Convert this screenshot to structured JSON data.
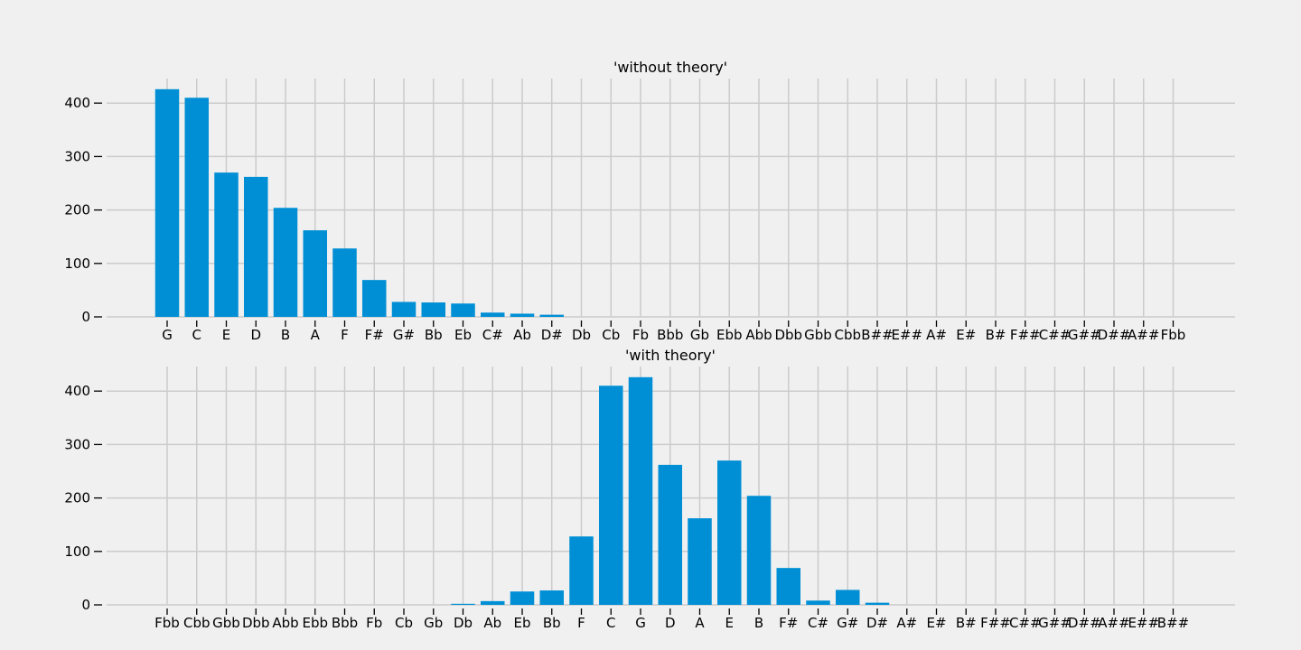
{
  "chart_data": [
    {
      "type": "bar",
      "title": "'without theory'",
      "xlabel": "",
      "ylabel": "",
      "ylim": [
        0,
        445
      ],
      "yticks": [
        0,
        100,
        200,
        300,
        400
      ],
      "grid": true,
      "color": "#008fd5",
      "categories": [
        "G",
        "C",
        "E",
        "D",
        "B",
        "A",
        "F",
        "F#",
        "G#",
        "Bb",
        "Eb",
        "C#",
        "Ab",
        "D#",
        "Db",
        "Cb",
        "Fb",
        "Bbb",
        "Gb",
        "Ebb",
        "Abb",
        "Dbb",
        "Gbb",
        "Cbb",
        "B##",
        "E##",
        "A#",
        "E#",
        "B#",
        "F##",
        "C##",
        "G##",
        "D##",
        "A##",
        "Fbb"
      ],
      "values": [
        426,
        410,
        270,
        262,
        204,
        162,
        128,
        69,
        28,
        27,
        25,
        8,
        6,
        4,
        0,
        0,
        0,
        0,
        0,
        0,
        0,
        0,
        0,
        0,
        0,
        0,
        0,
        0,
        0,
        0,
        0,
        0,
        0,
        0,
        0
      ]
    },
    {
      "type": "bar",
      "title": "'with theory'",
      "xlabel": "",
      "ylabel": "",
      "ylim": [
        0,
        445
      ],
      "yticks": [
        0,
        100,
        200,
        300,
        400
      ],
      "grid": true,
      "color": "#008fd5",
      "categories": [
        "Fbb",
        "Cbb",
        "Gbb",
        "Dbb",
        "Abb",
        "Ebb",
        "Bbb",
        "Fb",
        "Cb",
        "Gb",
        "Db",
        "Ab",
        "Eb",
        "Bb",
        "F",
        "C",
        "G",
        "D",
        "A",
        "E",
        "B",
        "F#",
        "C#",
        "G#",
        "D#",
        "A#",
        "E#",
        "B#",
        "F##",
        "C##",
        "G##",
        "D##",
        "A##",
        "E##",
        "B##"
      ],
      "values": [
        0,
        0,
        0,
        0,
        0,
        0,
        0,
        0,
        0,
        0,
        2,
        7,
        25,
        27,
        128,
        410,
        426,
        262,
        162,
        270,
        204,
        69,
        8,
        28,
        4,
        0,
        0,
        0,
        0,
        0,
        0,
        0,
        0,
        0,
        0
      ]
    }
  ]
}
